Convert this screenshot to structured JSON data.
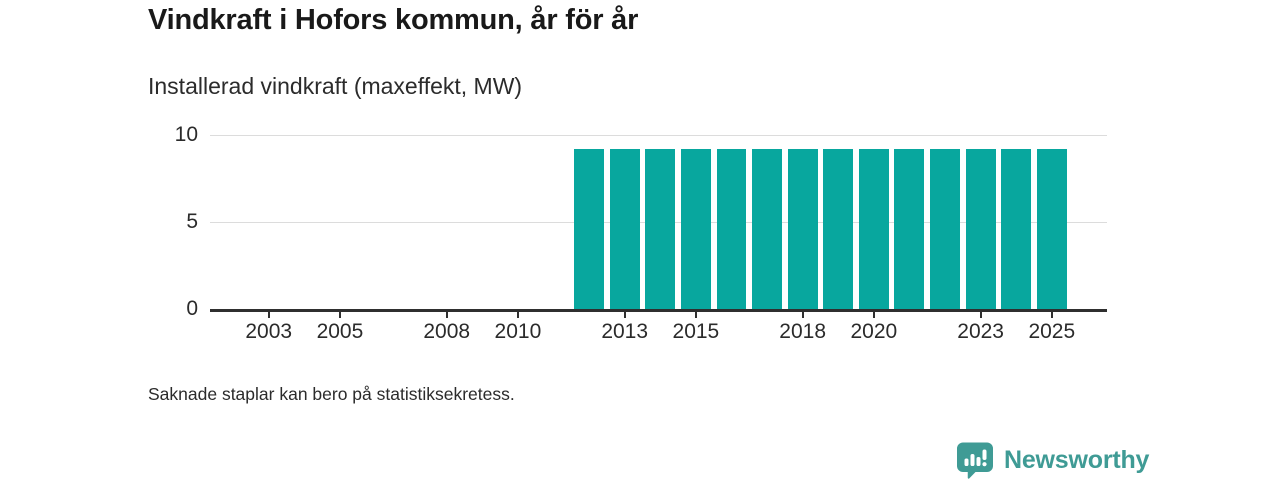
{
  "title": "Vindkraft i Hofors kommun, år för år",
  "subtitle": "Installerad vindkraft (maxeffekt, MW)",
  "footnote": "Saknade staplar kan bero på statistiksekretess.",
  "branding": {
    "name": "Newsworthy",
    "icon": "newsworthy-speech-bubble-bar-chart-icon",
    "color": "#3f9b95"
  },
  "colors": {
    "background": "#ffffff",
    "bar": "#08a79e",
    "axis": "#2f2f2f",
    "grid": "#dcdcdc",
    "title": "#191919",
    "text": "#2b2b2b",
    "brand": "#3f9b95"
  },
  "chart_data": {
    "type": "bar",
    "title": "Vindkraft i Hofors kommun, år för år",
    "subtitle": "Installerad vindkraft (maxeffekt, MW)",
    "xlabel": "",
    "ylabel": "Installerad vindkraft (maxeffekt, MW)",
    "x": [
      2012,
      2013,
      2014,
      2015,
      2016,
      2017,
      2018,
      2019,
      2020,
      2021,
      2022,
      2023,
      2024,
      2025
    ],
    "values": [
      9.2,
      9.2,
      9.2,
      9.2,
      9.2,
      9.2,
      9.2,
      9.2,
      9.2,
      9.2,
      9.2,
      9.2,
      9.2,
      9.2
    ],
    "xticks": [
      2003,
      2005,
      2008,
      2010,
      2013,
      2015,
      2018,
      2020,
      2023,
      2025
    ],
    "yticks": [
      0,
      5,
      10
    ],
    "xlim": [
      2001.35,
      2026.55
    ],
    "ylim": [
      0,
      10
    ],
    "grid": "horizontal-only",
    "legend": "none",
    "bar_width_years": 0.84,
    "bar_color": "#08a79e",
    "footnote": "Saknade staplar kan bero på statistiksekretess."
  }
}
